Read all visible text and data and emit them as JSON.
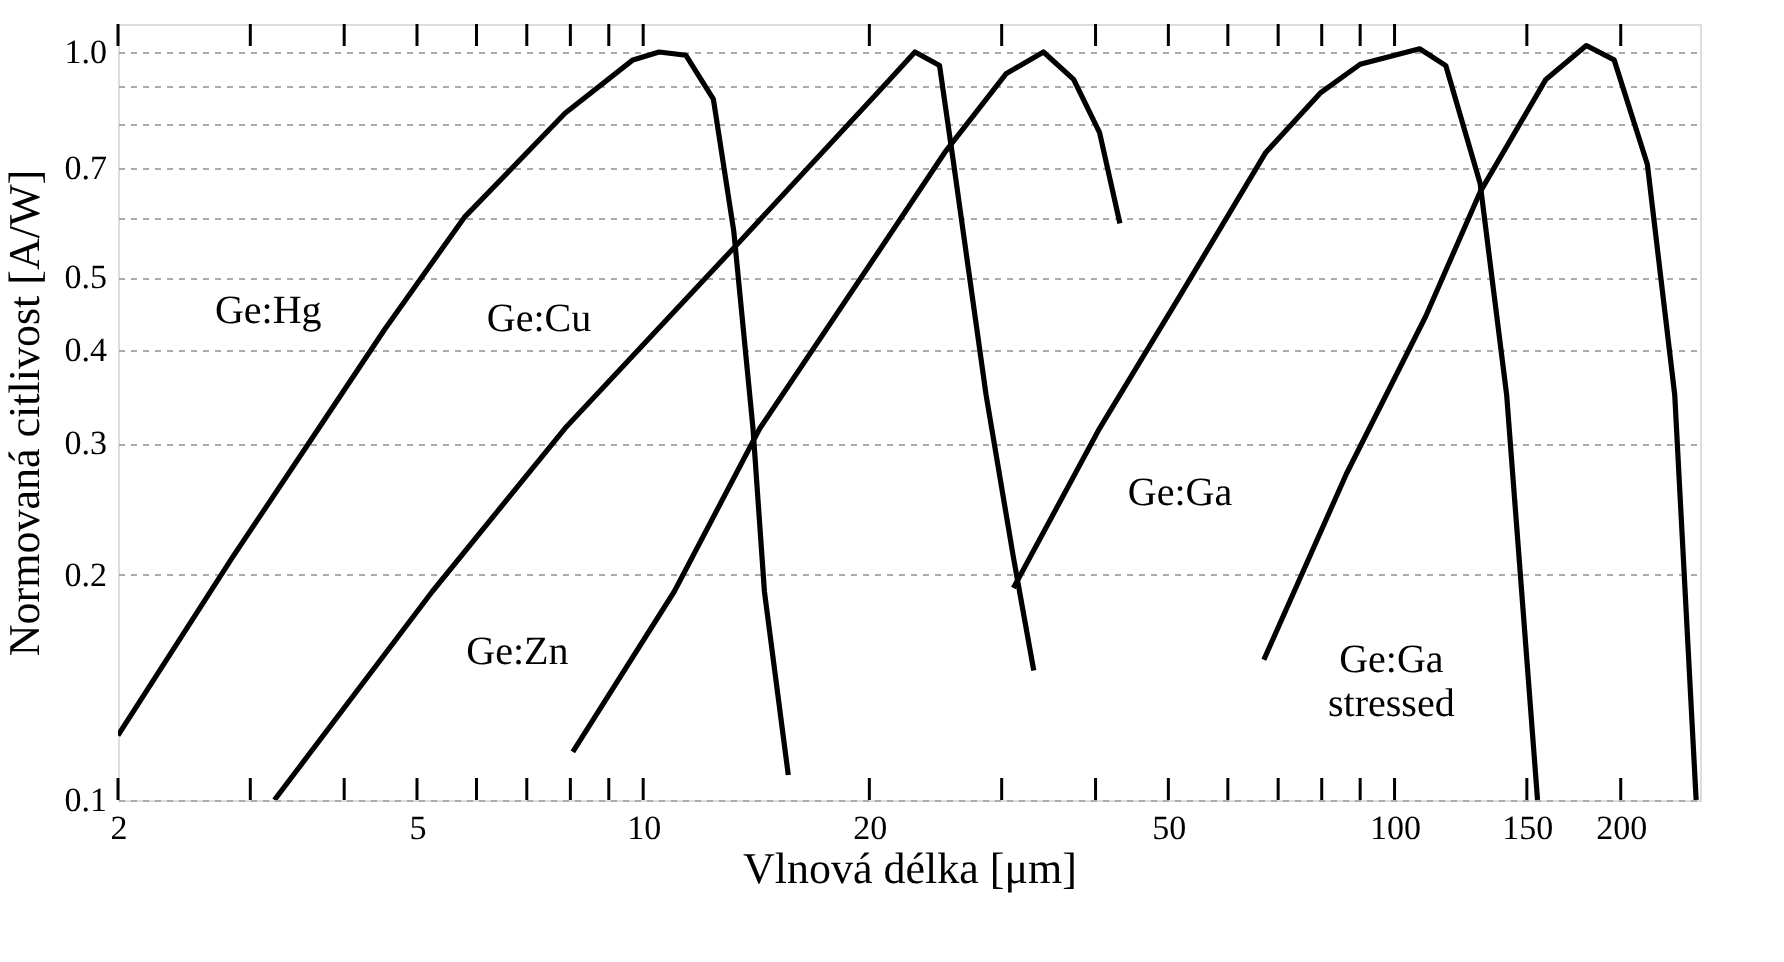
{
  "chart_data": {
    "type": "line",
    "xlabel": "Vlnová délka [μm]",
    "ylabel": "Normovaná citlivost [A/W]",
    "log": "xy",
    "grid": "y",
    "legend": false,
    "xlim": [
      2,
      255
    ],
    "ylim": [
      0.1,
      1.09
    ],
    "xticks": [
      2,
      {
        "value": 3,
        "label": null
      },
      {
        "value": 4,
        "label": null
      },
      5,
      {
        "value": 6,
        "label": null
      },
      {
        "value": 7,
        "label": null
      },
      {
        "value": 8,
        "label": null
      },
      {
        "value": 9,
        "label": null
      },
      10,
      20,
      {
        "value": 30,
        "label": null
      },
      {
        "value": 40,
        "label": null
      },
      50,
      {
        "value": 60,
        "label": null
      },
      {
        "value": 70,
        "label": null
      },
      {
        "value": 80,
        "label": null
      },
      {
        "value": 90,
        "label": null
      },
      100,
      150,
      200
    ],
    "yticks": [
      0.1,
      0.2,
      0.3,
      0.4,
      0.5,
      {
        "value": 0.6,
        "label": null
      },
      0.7,
      {
        "value": 0.8,
        "label": null
      },
      {
        "value": 0.9,
        "label": null
      },
      {
        "value": 1,
        "label": "1.0"
      }
    ],
    "series": [
      {
        "name": "Ge:Hg",
        "color": "#000000",
        "x": [
          2,
          2.84,
          3.7,
          4.53,
          5.78,
          7.87,
          9.69,
          10.5,
          11.4,
          12.4,
          13.2,
          14.0,
          14.5,
          15.6
        ],
        "values": [
          0.122,
          0.211,
          0.314,
          0.426,
          0.601,
          0.828,
          0.976,
          1.0,
          0.99,
          0.865,
          0.576,
          0.314,
          0.19,
          0.108
        ]
      },
      {
        "name": "Ge:Cu",
        "color": "#000000",
        "x": [
          3.23,
          5.24,
          7.87,
          13.4,
          20.7,
          23.0,
          24.8,
          25.9,
          28.6,
          31.1,
          33.1
        ],
        "values": [
          0.1,
          0.19,
          0.314,
          0.556,
          0.891,
          1.0,
          0.959,
          0.708,
          0.348,
          0.211,
          0.149
        ]
      },
      {
        "name": "Ge:Zn",
        "color": "#000000",
        "x": [
          8.06,
          11.0,
          14.3,
          20.6,
          25.2,
          30.4,
          34.1,
          37.4,
          40.5,
          43.1
        ],
        "values": [
          0.116,
          0.19,
          0.314,
          0.542,
          0.734,
          0.935,
          1.0,
          0.919,
          0.78,
          0.59
        ]
      },
      {
        "name": "Ge:Ga",
        "color": "#000000",
        "x": [
          31.1,
          40.5,
          51.8,
          67.4,
          79.6,
          90,
          108,
          117,
          130,
          141,
          155
        ],
        "values": [
          0.192,
          0.314,
          0.472,
          0.734,
          0.881,
          0.963,
          1.01,
          0.959,
          0.667,
          0.348,
          0.1
        ]
      },
      {
        "name": "Ge:Ga\nstressed",
        "color": "#000000",
        "x": [
          67,
          86.3,
          110,
          130,
          159,
          180,
          196,
          217,
          236,
          252
        ],
        "values": [
          0.154,
          0.273,
          0.443,
          0.65,
          0.919,
          1.02,
          0.976,
          0.708,
          0.348,
          0.1
        ]
      }
    ]
  }
}
